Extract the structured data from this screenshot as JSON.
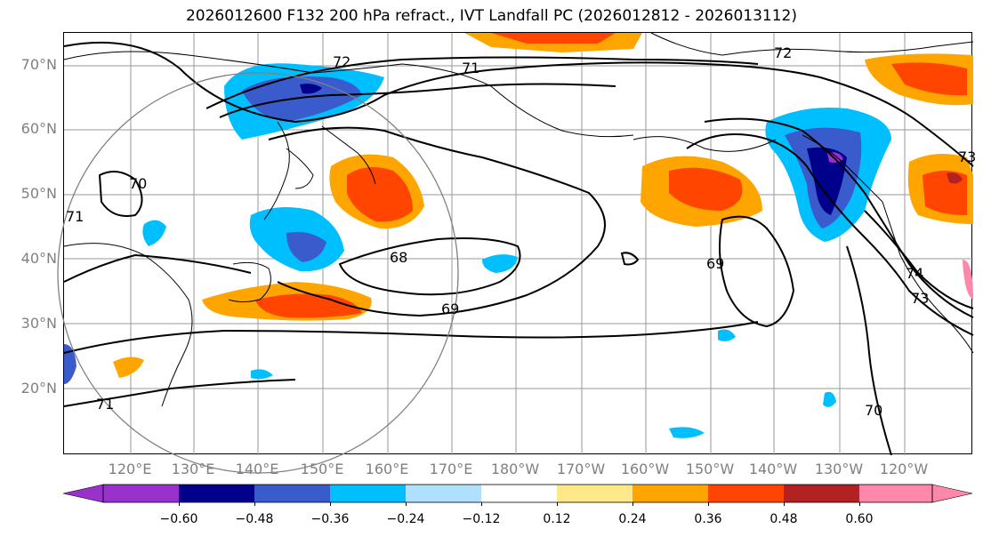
{
  "title": "2026012600 F132 200 hPa refract., IVT Landfall PC (2026012812 - 2026013112)",
  "lat_labels": [
    "70°N",
    "60°N",
    "50°N",
    "40°N",
    "30°N",
    "20°N"
  ],
  "lon_labels": [
    "120°E",
    "130°E",
    "140°E",
    "150°E",
    "160°E",
    "170°E",
    "180°W",
    "170°W",
    "160°W",
    "150°W",
    "140°W",
    "130°W",
    "120°W"
  ],
  "contour_labels": [
    "72",
    "71",
    "72",
    "70",
    "71",
    "68",
    "69",
    "69",
    "74",
    "73",
    "71",
    "70",
    "73"
  ],
  "colorbar": {
    "ticks": [
      "−0.60",
      "−0.48",
      "−0.36",
      "−0.24",
      "−0.12",
      "0.12",
      "0.24",
      "0.36",
      "0.48",
      "0.60"
    ],
    "colors": [
      "#9932cc",
      "#00008b",
      "#3a5bcc",
      "#00bfff",
      "#b0e0ff",
      "#ffffff",
      "#ffe88a",
      "#ffa500",
      "#ff4500",
      "#b22222",
      "#ff88aa"
    ]
  },
  "shading_colors": {
    "dark_neg": "#00008b",
    "mid_neg": "#3a5bcc",
    "light_neg": "#00bfff",
    "pale_neg": "#b0e0ff",
    "pale_pos": "#ffe88a",
    "mid_pos": "#ffa500",
    "strong_pos": "#ff4500",
    "max_pos": "#b22222",
    "purple": "#9932cc"
  }
}
